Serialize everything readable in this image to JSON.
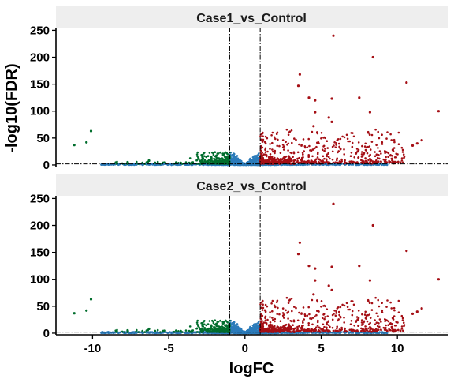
{
  "chart_data": {
    "type": "scatter",
    "xlabel": "logFC",
    "ylabel": "-log10(FDR)",
    "xlim": [
      -12.4,
      13.3
    ],
    "ylim": [
      -3,
      255
    ],
    "x_ticks": [
      -10,
      -5,
      0,
      5,
      10
    ],
    "y_ticks": [
      0,
      50,
      100,
      150,
      200,
      250
    ],
    "grid": false,
    "legend": "none",
    "reference_lines": {
      "vertical_x": [
        -1,
        1
      ],
      "horizontal_y": [
        2
      ],
      "style": "dot-dash"
    },
    "colors": {
      "up": "#a50f15",
      "down": "#006d2c",
      "not_significant": "#2b7bba",
      "strip": "#eeeeee"
    },
    "panels": [
      {
        "title": "Case1_vs_Control",
        "highlight_points": [
          {
            "x": 5.8,
            "y": 240,
            "group": "up"
          },
          {
            "x": 8.4,
            "y": 200,
            "group": "up"
          },
          {
            "x": 3.6,
            "y": 168,
            "group": "up"
          },
          {
            "x": 10.6,
            "y": 153,
            "group": "up"
          },
          {
            "x": 3.5,
            "y": 147,
            "group": "up"
          },
          {
            "x": 7.5,
            "y": 125,
            "group": "up"
          },
          {
            "x": 4.2,
            "y": 125,
            "group": "up"
          },
          {
            "x": 5.7,
            "y": 123,
            "group": "up"
          },
          {
            "x": 4.6,
            "y": 120,
            "group": "up"
          },
          {
            "x": 4.6,
            "y": 98,
            "group": "up"
          },
          {
            "x": 8.2,
            "y": 98,
            "group": "up"
          },
          {
            "x": 12.7,
            "y": 100,
            "group": "up"
          },
          {
            "x": 5.5,
            "y": 88,
            "group": "up"
          },
          {
            "x": 5.7,
            "y": 80,
            "group": "up"
          },
          {
            "x": 4.5,
            "y": 72,
            "group": "up"
          },
          {
            "x": 11.6,
            "y": 46,
            "group": "up"
          },
          {
            "x": 11.3,
            "y": 40,
            "group": "up"
          },
          {
            "x": 11.0,
            "y": 36,
            "group": "up"
          },
          {
            "x": 9.7,
            "y": 28,
            "group": "up"
          },
          {
            "x": -10.1,
            "y": 63,
            "group": "down"
          },
          {
            "x": -10.4,
            "y": 42,
            "group": "down"
          },
          {
            "x": -11.2,
            "y": 37,
            "group": "down"
          },
          {
            "x": -7.7,
            "y": 5,
            "group": "down"
          },
          {
            "x": -6.3,
            "y": 8,
            "group": "down"
          }
        ]
      },
      {
        "title": "Case2_vs_Control",
        "highlight_points": [
          {
            "x": 5.8,
            "y": 240,
            "group": "up"
          },
          {
            "x": 8.4,
            "y": 200,
            "group": "up"
          },
          {
            "x": 3.6,
            "y": 168,
            "group": "up"
          },
          {
            "x": 10.6,
            "y": 153,
            "group": "up"
          },
          {
            "x": 3.5,
            "y": 147,
            "group": "up"
          },
          {
            "x": 7.5,
            "y": 125,
            "group": "up"
          },
          {
            "x": 4.2,
            "y": 125,
            "group": "up"
          },
          {
            "x": 5.7,
            "y": 123,
            "group": "up"
          },
          {
            "x": 4.6,
            "y": 120,
            "group": "up"
          },
          {
            "x": 4.6,
            "y": 98,
            "group": "up"
          },
          {
            "x": 8.2,
            "y": 98,
            "group": "up"
          },
          {
            "x": 12.7,
            "y": 100,
            "group": "up"
          },
          {
            "x": 5.5,
            "y": 88,
            "group": "up"
          },
          {
            "x": 5.7,
            "y": 80,
            "group": "up"
          },
          {
            "x": 4.5,
            "y": 72,
            "group": "up"
          },
          {
            "x": 11.6,
            "y": 46,
            "group": "up"
          },
          {
            "x": 11.3,
            "y": 40,
            "group": "up"
          },
          {
            "x": 11.0,
            "y": 36,
            "group": "up"
          },
          {
            "x": 9.7,
            "y": 28,
            "group": "up"
          },
          {
            "x": -10.1,
            "y": 63,
            "group": "down"
          },
          {
            "x": -10.4,
            "y": 42,
            "group": "down"
          },
          {
            "x": -11.2,
            "y": 37,
            "group": "down"
          },
          {
            "x": -7.7,
            "y": 5,
            "group": "down"
          },
          {
            "x": -6.3,
            "y": 8,
            "group": "down"
          }
        ]
      }
    ]
  }
}
